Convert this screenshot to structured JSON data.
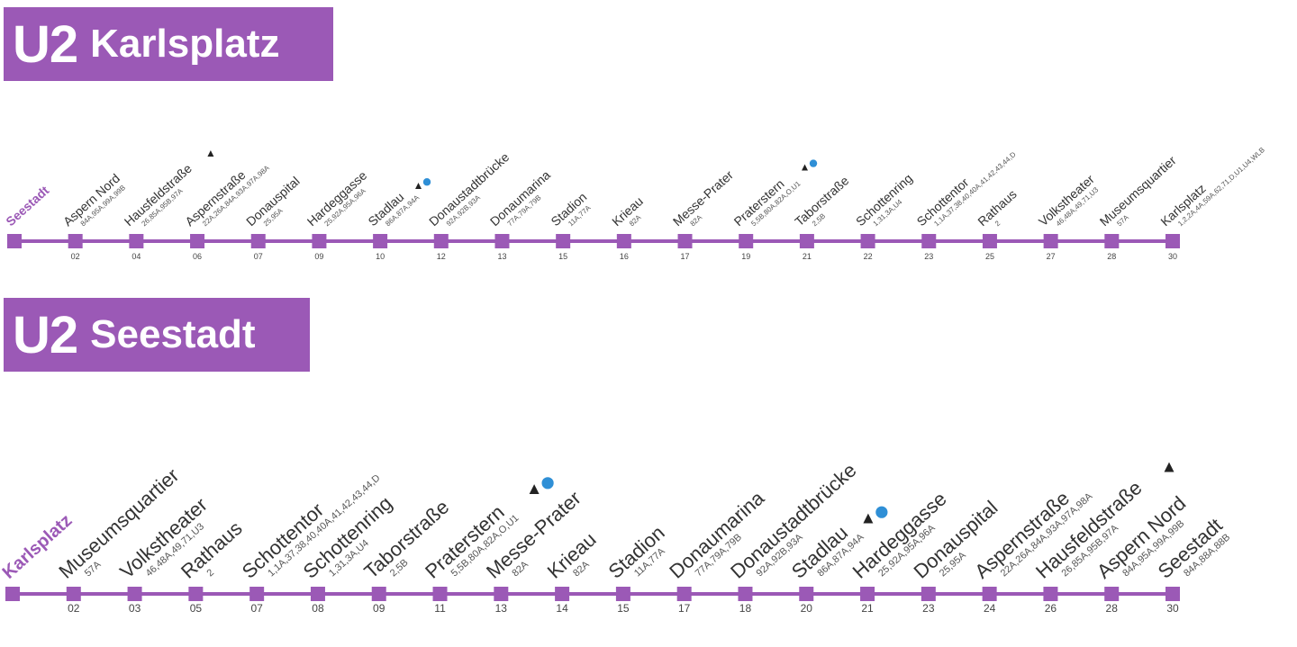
{
  "colors": {
    "line": "#9b59b6",
    "text": "#333333",
    "sub": "#555555",
    "sbahn": "#2f8fd6"
  },
  "directions": [
    {
      "line": "U2",
      "destination": "Karlsplatz",
      "origin": "Seestadt",
      "stops": [
        {
          "name": "Aspern Nord",
          "lines": "84A,95A,99A,99B",
          "num": "02"
        },
        {
          "name": "Hausfeldstraße",
          "lines": "26,85A,95B,97A",
          "num": "04",
          "icon": "bell"
        },
        {
          "name": "Aspernstraße",
          "lines": "22A,26A,84A,93A,97A,98A",
          "num": "06"
        },
        {
          "name": "Donauspital",
          "lines": "25,95A",
          "num": "07"
        },
        {
          "name": "Hardeggasse",
          "lines": "25,92A,95A,96A",
          "num": "09"
        },
        {
          "name": "Stadlau",
          "lines": "86A,87A,94A",
          "num": "10",
          "icon": "bell-s"
        },
        {
          "name": "Donaustadtbrücke",
          "lines": "92A,92B,93A",
          "num": "12"
        },
        {
          "name": "Donaumarina",
          "lines": "77A,79A,79B",
          "num": "13"
        },
        {
          "name": "Stadion",
          "lines": "11A,77A",
          "num": "15"
        },
        {
          "name": "Krieau",
          "lines": "82A",
          "num": "16"
        },
        {
          "name": "Messe-Prater",
          "lines": "82A",
          "num": "17"
        },
        {
          "name": "Praterstern",
          "lines": "5,5B,80A,82A,O,U1",
          "num": "19",
          "icon": "bell-s"
        },
        {
          "name": "Taborstraße",
          "lines": "2,5B",
          "num": "21"
        },
        {
          "name": "Schottenring",
          "lines": "1,31,3A,U4",
          "num": "22"
        },
        {
          "name": "Schottentor",
          "lines": "1,1A,37,38,40,40A,41,42,43,44,D",
          "num": "23"
        },
        {
          "name": "Rathaus",
          "lines": "2",
          "num": "25"
        },
        {
          "name": "Volkstheater",
          "lines": "46,48A,49,71,U3",
          "num": "27"
        },
        {
          "name": "Museumsquartier",
          "lines": "57A",
          "num": "28"
        },
        {
          "name": "Karlsplatz",
          "lines": "1,2,2A,4A,59A,62,71,D,U1,U4,WLB",
          "num": "30"
        }
      ]
    },
    {
      "line": "U2",
      "destination": "Seestadt",
      "origin": "Karlsplatz",
      "stops": [
        {
          "name": "Museumsquartier",
          "lines": "57A",
          "num": "02"
        },
        {
          "name": "Volkstheater",
          "lines": "46,48A,49,71,U3",
          "num": "03"
        },
        {
          "name": "Rathaus",
          "lines": "2",
          "num": "05"
        },
        {
          "name": "Schottentor",
          "lines": "1,1A,37,38,40,40A,41,42,43,44,D",
          "num": "07"
        },
        {
          "name": "Schottenring",
          "lines": "1,31,3A,U4",
          "num": "08"
        },
        {
          "name": "Taborstraße",
          "lines": "2,5B",
          "num": "09"
        },
        {
          "name": "Praterstern",
          "lines": "5,5B,80A,82A,O,U1",
          "num": "11",
          "icon": "bell-s"
        },
        {
          "name": "Messe-Prater",
          "lines": "82A",
          "num": "13"
        },
        {
          "name": "Krieau",
          "lines": "82A",
          "num": "14"
        },
        {
          "name": "Stadion",
          "lines": "11A,77A",
          "num": "15"
        },
        {
          "name": "Donaumarina",
          "lines": "77A,79A,79B",
          "num": "17"
        },
        {
          "name": "Donaustadtbrücke",
          "lines": "92A,92B,93A",
          "num": "18"
        },
        {
          "name": "Stadlau",
          "lines": "86A,87A,94A",
          "num": "20",
          "icon": "bell-s"
        },
        {
          "name": "Hardeggasse",
          "lines": "25,92A,95A,96A",
          "num": "21"
        },
        {
          "name": "Donauspital",
          "lines": "25,95A",
          "num": "23"
        },
        {
          "name": "Aspernstraße",
          "lines": "22A,26A,84A,93A,97A,98A",
          "num": "24"
        },
        {
          "name": "Hausfeldstraße",
          "lines": "26,85A,95B,97A",
          "num": "26",
          "icon": "bell"
        },
        {
          "name": "Aspern Nord",
          "lines": "84A,95A,99A,99B",
          "num": "28"
        },
        {
          "name": "Seestadt",
          "lines": "84A,88A,88B",
          "num": "30"
        }
      ]
    }
  ]
}
